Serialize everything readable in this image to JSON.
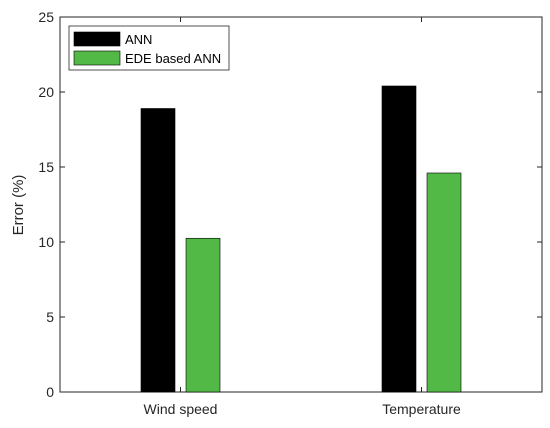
{
  "chart_data": {
    "type": "bar",
    "categories": [
      "Wind speed",
      "Temperature"
    ],
    "series": [
      {
        "name": "ANN",
        "values": [
          18.9,
          20.4
        ],
        "color": "#000000"
      },
      {
        "name": "EDE based ANN",
        "values": [
          10.25,
          14.6
        ],
        "color": "#53b946"
      }
    ],
    "xlabel": "",
    "ylabel": "Error (%)",
    "ylim": [
      0,
      25
    ],
    "yticks": [
      0,
      5,
      10,
      15,
      20,
      25
    ],
    "grid": false,
    "legend_position": "top-left"
  }
}
